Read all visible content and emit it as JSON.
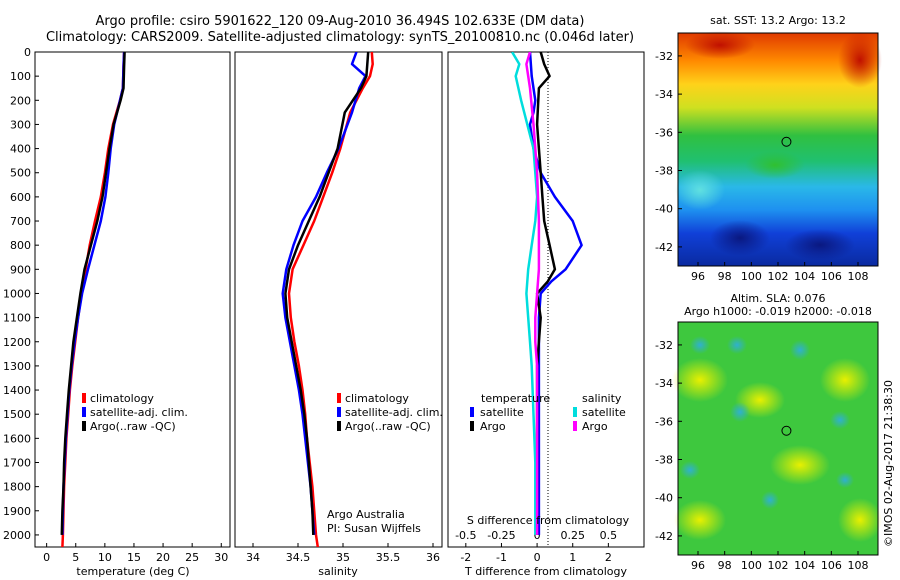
{
  "header": {
    "line1": "Argo profile: csiro 5901622_120 09-Aug-2010 36.494S 102.633E (DM data)",
    "line2": "Climatology: CARS2009. Satellite-adjusted climatology: synTS_20100810.nc (0.046d later)"
  },
  "colors": {
    "climatology": "#ff0000",
    "satellite": "#0000ff",
    "argo": "#000000",
    "sal_satellite": "#00dddd",
    "sal_argo": "#ff00ff"
  },
  "depth_ticks": [
    0,
    100,
    200,
    300,
    400,
    500,
    600,
    700,
    800,
    900,
    1000,
    1100,
    1200,
    1300,
    1400,
    1500,
    1600,
    1700,
    1800,
    1900,
    2000
  ],
  "chart_data": [
    {
      "type": "line",
      "id": "temperature",
      "xlabel": "temperature (deg C)",
      "xlim": [
        -2,
        31.5
      ],
      "ylim": [
        2050,
        0
      ],
      "xticks": [
        0,
        5,
        10,
        15,
        20,
        25,
        30
      ],
      "legend": {
        "placement": "lower-left",
        "entries": [
          "climatology",
          "satellite-adj. clim.",
          "Argo(..raw -QC)"
        ]
      },
      "series": [
        {
          "name": "climatology",
          "key": "climatology",
          "x": [
            13.3,
            13.2,
            13.1,
            12.6,
            11.4,
            10.6,
            10.0,
            9.3,
            8.3,
            7.4,
            6.7,
            6.0,
            5.4,
            4.9,
            4.4,
            4.0,
            3.7,
            3.4,
            3.2,
            3.0,
            2.9,
            2.8,
            2.7
          ],
          "y": [
            0,
            60,
            150,
            200,
            300,
            400,
            500,
            600,
            700,
            800,
            900,
            1000,
            1100,
            1200,
            1300,
            1400,
            1500,
            1600,
            1700,
            1800,
            1900,
            2000,
            2050
          ]
        },
        {
          "name": "satellite-adj. clim.",
          "key": "satellite",
          "x": [
            13.3,
            13.2,
            13.1,
            12.6,
            11.6,
            11.0,
            10.6,
            10.1,
            9.3,
            8.2,
            7.1,
            6.1,
            5.4,
            4.8,
            4.3,
            3.9,
            3.6,
            3.3,
            3.1,
            2.9,
            2.8,
            2.7
          ],
          "y": [
            0,
            60,
            150,
            200,
            300,
            400,
            500,
            600,
            700,
            800,
            900,
            1000,
            1100,
            1200,
            1300,
            1400,
            1500,
            1600,
            1700,
            1800,
            1900,
            2000
          ]
        },
        {
          "name": "Argo(..raw -QC)",
          "key": "argo",
          "x": [
            13.4,
            13.3,
            13.2,
            12.7,
            11.5,
            10.8,
            10.2,
            9.6,
            8.7,
            7.6,
            6.5,
            5.8,
            5.2,
            4.6,
            4.2,
            3.8,
            3.5,
            3.2,
            3.0,
            2.9,
            2.7,
            2.6
          ],
          "y": [
            0,
            60,
            150,
            200,
            300,
            400,
            500,
            600,
            700,
            800,
            900,
            1000,
            1100,
            1200,
            1300,
            1400,
            1500,
            1600,
            1700,
            1800,
            1900,
            2000
          ]
        }
      ]
    },
    {
      "type": "line",
      "id": "salinity",
      "xlabel": "salinity",
      "xlim": [
        33.8,
        36.1
      ],
      "ylim": [
        2050,
        0
      ],
      "xticks": [
        34,
        34.5,
        35,
        35.5,
        36
      ],
      "legend": {
        "placement": "lower-right",
        "entries": [
          "climatology",
          "satellite-adj. clim.",
          "Argo(..raw -QC)"
        ]
      },
      "annotation": [
        "Argo Australia",
        "PI: Susan Wijffels"
      ],
      "series": [
        {
          "name": "climatology",
          "key": "climatology",
          "x": [
            35.32,
            35.33,
            35.3,
            35.22,
            35.08,
            34.97,
            34.88,
            34.78,
            34.68,
            34.56,
            34.44,
            34.4,
            34.42,
            34.46,
            34.51,
            34.55,
            34.58,
            34.6,
            34.63,
            34.66,
            34.68,
            34.7,
            34.72
          ],
          "y": [
            0,
            50,
            100,
            150,
            250,
            400,
            500,
            600,
            700,
            800,
            900,
            1000,
            1100,
            1200,
            1300,
            1400,
            1500,
            1600,
            1700,
            1800,
            1900,
            2000,
            2050
          ]
        },
        {
          "name": "satellite-adj. clim.",
          "key": "satellite",
          "x": [
            35.15,
            35.1,
            35.25,
            35.18,
            35.1,
            34.95,
            34.82,
            34.7,
            34.55,
            34.45,
            34.37,
            34.33,
            34.36,
            34.41,
            34.46,
            34.51,
            34.55,
            34.58,
            34.61,
            34.64,
            34.66,
            34.68
          ],
          "y": [
            0,
            50,
            100,
            150,
            250,
            400,
            500,
            600,
            700,
            800,
            900,
            1000,
            1100,
            1200,
            1300,
            1400,
            1500,
            1600,
            1700,
            1800,
            1900,
            2000
          ]
        },
        {
          "name": "Argo(..raw -QC)",
          "key": "argo",
          "x": [
            35.28,
            35.27,
            35.26,
            35.2,
            35.02,
            34.94,
            34.84,
            34.74,
            34.62,
            34.5,
            34.4,
            34.36,
            34.38,
            34.43,
            34.48,
            34.53,
            34.57,
            34.6,
            34.62,
            34.64,
            34.66,
            34.67
          ],
          "y": [
            0,
            50,
            100,
            150,
            250,
            400,
            500,
            600,
            700,
            800,
            900,
            1000,
            1100,
            1200,
            1300,
            1400,
            1500,
            1600,
            1700,
            1800,
            1900,
            2000
          ]
        }
      ]
    },
    {
      "type": "line",
      "id": "differences",
      "xlabel": "T difference from climatology",
      "xlabel2": "S difference from climatology",
      "xlim": [
        -2.5,
        3.0
      ],
      "xticks": [
        -2,
        -1,
        0,
        1,
        2
      ],
      "xticks2_labels": [
        "-0.5",
        "-0.25",
        "0",
        "0.25",
        "0.5"
      ],
      "xticks2_pos": [
        -2,
        -1,
        0,
        1,
        2
      ],
      "ylim": [
        2050,
        0
      ],
      "legend": {
        "placement": "lower-center",
        "group1_title": "temperature",
        "group2_title": "salinity",
        "entries": [
          "satellite",
          "Argo",
          "satellite",
          "Argo"
        ]
      },
      "series": [
        {
          "name": "satellite",
          "key": "satellite",
          "x": [
            -0.2,
            -0.15,
            -0.05,
            -0.1,
            -0.2,
            -0.1,
            0.1,
            0.5,
            1.0,
            1.25,
            0.8,
            0.4,
            0.1,
            0.05,
            0.05,
            0.05,
            0.05,
            0.05,
            0.05,
            0.05,
            0.05
          ],
          "y": [
            0,
            100,
            200,
            250,
            300,
            400,
            500,
            600,
            700,
            800,
            900,
            950,
            1000,
            1100,
            1200,
            1400,
            1500,
            1600,
            1700,
            1800,
            2000
          ]
        },
        {
          "name": "Argo",
          "key": "argo",
          "x": [
            0.1,
            0.2,
            0.35,
            0.05,
            0.0,
            0.05,
            0.1,
            0.15,
            0.2,
            0.35,
            0.5,
            0.3,
            0.0,
            0.1,
            0.05,
            0.0,
            0.0,
            0.0,
            0.0,
            0.0
          ],
          "y": [
            0,
            50,
            100,
            150,
            300,
            400,
            500,
            600,
            700,
            800,
            900,
            950,
            1000,
            1100,
            1200,
            1300,
            1500,
            1700,
            1900,
            2000
          ]
        },
        {
          "name": "satellite",
          "key": "sal_satellite",
          "x": [
            -0.7,
            -0.5,
            -0.6,
            -0.45,
            -0.1,
            -0.05,
            0.0,
            -0.05,
            -0.15,
            -0.25,
            -0.3,
            -0.25,
            -0.2,
            -0.15,
            -0.1,
            -0.05,
            -0.05,
            -0.05
          ],
          "y": [
            0,
            50,
            100,
            200,
            400,
            500,
            600,
            700,
            800,
            900,
            1000,
            1100,
            1200,
            1300,
            1500,
            1700,
            1900,
            2000
          ]
        },
        {
          "name": "Argo",
          "key": "sal_argo",
          "x": [
            -0.2,
            -0.3,
            -0.2,
            -0.1,
            0.0,
            0.05,
            0.05,
            0.0,
            -0.05,
            -0.05,
            0.0,
            0.0,
            0.0,
            0.0,
            0.0
          ],
          "y": [
            0,
            50,
            150,
            300,
            500,
            700,
            900,
            1000,
            1100,
            1200,
            1300,
            1500,
            1700,
            1900,
            2000
          ]
        }
      ]
    },
    {
      "type": "heatmap",
      "id": "sst_map",
      "title": "sat. SST: 13.2 Argo: 13.2",
      "xlim": [
        94.5,
        109.5
      ],
      "ylim": [
        -43,
        -30.8
      ],
      "xticks": [
        96,
        98,
        100,
        102,
        104,
        106,
        108
      ],
      "yticks": [
        -32,
        -34,
        -36,
        -38,
        -40,
        -42
      ],
      "argo_position": [
        102.633,
        -36.494
      ]
    },
    {
      "type": "heatmap",
      "id": "sla_map",
      "title1": "Altim. SLA: 0.076",
      "title2": "Argo h1000: -0.019 h2000: -0.018",
      "xlim": [
        94.5,
        109.5
      ],
      "ylim": [
        -43,
        -30.8
      ],
      "xticks": [
        96,
        98,
        100,
        102,
        104,
        106,
        108
      ],
      "yticks": [
        -32,
        -34,
        -36,
        -38,
        -40,
        -42
      ],
      "argo_position": [
        102.633,
        -36.494
      ]
    }
  ],
  "footer": {
    "credit": "©IMOS 02-Aug-2017 21:38:30"
  }
}
